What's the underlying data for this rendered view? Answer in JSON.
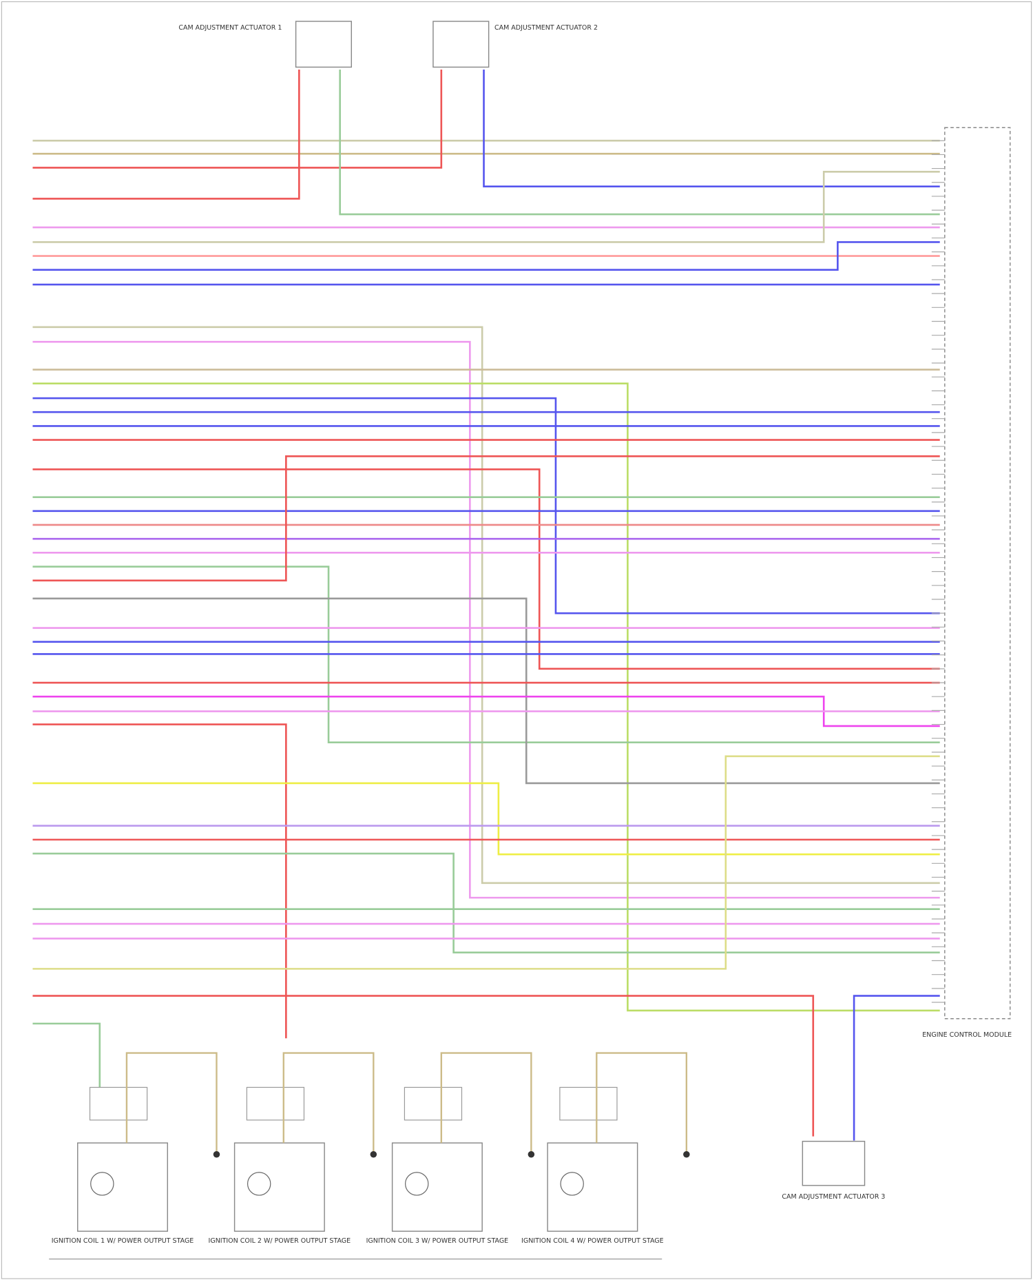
{
  "components": {
    "cam_actuator_1": "CAM ADJUSTMENT ACTUATOR 1",
    "cam_actuator_2": "CAM ADJUSTMENT ACTUATOR 2",
    "cam_actuator_3": "CAM ADJUSTMENT ACTUATOR 3",
    "ecm": "ENGINE CONTROL MODULE",
    "coils": [
      "IGNITION COIL 1 W/ POWER OUTPUT STAGE",
      "IGNITION COIL 2 W/ POWER OUTPUT STAGE",
      "IGNITION COIL 3 W/ POWER OUTPUT STAGE",
      "IGNITION COIL 4 W/ POWER OUTPUT STAGE"
    ]
  }
}
